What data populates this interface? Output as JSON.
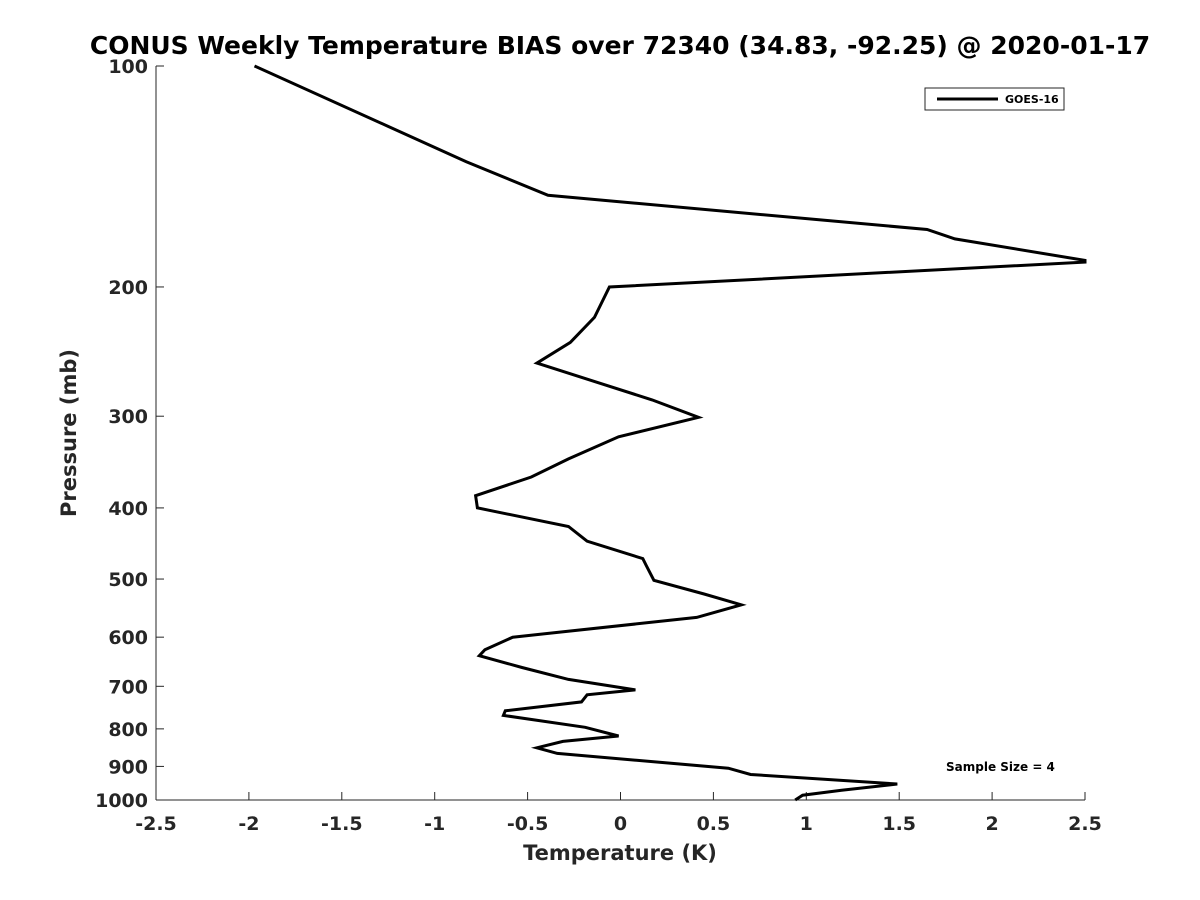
{
  "chart_data": {
    "type": "line",
    "title": "CONUS Weekly Temperature BIAS over 72340 (34.83, -92.25) @ 2020-01-17",
    "xlabel": "Temperature (K)",
    "ylabel": "Pressure (mb)",
    "xlim": [
      -2.5,
      2.5
    ],
    "ylim": [
      100,
      1000
    ],
    "y_scale": "log",
    "y_reversed": true,
    "grid": false,
    "xticks": [
      "-2.5",
      "-2",
      "-1.5",
      "-1",
      "-0.5",
      "0",
      "0.5",
      "1",
      "1.5",
      "2",
      "2.5"
    ],
    "xtick_values": [
      -2.5,
      -2,
      -1.5,
      -1,
      -0.5,
      0,
      0.5,
      1,
      1.5,
      2,
      2.5
    ],
    "yticks": [
      "100",
      "200",
      "300",
      "400",
      "500",
      "600",
      "700",
      "800",
      "900",
      "1000"
    ],
    "ytick_values": [
      100,
      200,
      300,
      400,
      500,
      600,
      700,
      800,
      900,
      1000
    ],
    "legend_position": "top-right",
    "series": [
      {
        "name": "GOES-16",
        "color": "#000000",
        "x": [
          -1.97,
          -0.83,
          -0.39,
          1.65,
          1.8,
          2.5,
          2.5,
          -0.06,
          -0.14,
          -0.27,
          -0.45,
          0.17,
          0.42,
          -0.01,
          -0.28,
          -0.48,
          -0.78,
          -0.77,
          -0.28,
          -0.18,
          0.12,
          0.14,
          0.18,
          0.45,
          0.65,
          0.41,
          -0.58,
          -0.73,
          -0.76,
          -0.53,
          -0.28,
          0.08,
          -0.18,
          -0.21,
          -0.62,
          -0.63,
          -0.19,
          -0.01,
          -0.31,
          -0.45,
          -0.34,
          0.58,
          0.7,
          1.49,
          1.19,
          0.98,
          0.94
        ],
        "y": [
          100,
          135,
          150,
          167,
          172,
          184,
          185,
          200,
          220,
          238,
          254,
          285,
          301,
          320,
          343,
          363,
          385,
          400,
          424,
          444,
          469,
          480,
          502,
          524,
          542,
          564,
          600,
          624,
          636,
          660,
          685,
          708,
          719,
          735,
          756,
          767,
          796,
          818,
          832,
          849,
          864,
          905,
          923,
          951,
          970,
          985,
          1000
        ]
      }
    ],
    "annotations": [
      "Sample Size = 4"
    ]
  }
}
